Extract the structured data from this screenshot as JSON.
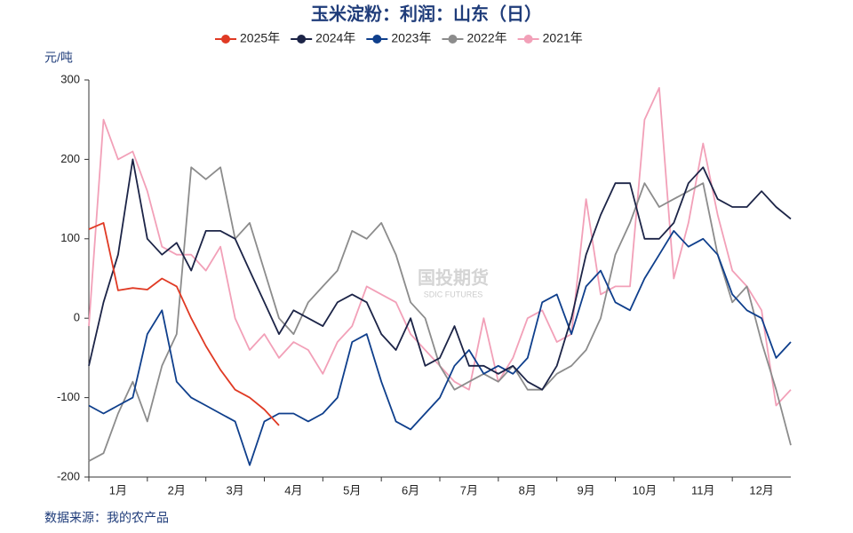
{
  "chart_data": {
    "type": "line",
    "title": "玉米淀粉：利润：山东（日）",
    "y_label": "元/吨",
    "source": "数据来源：我的农产品",
    "watermark": [
      "国投期货",
      "SDIC FUTURES"
    ],
    "x": [
      0,
      0.25,
      0.5,
      0.75,
      1,
      1.25,
      1.5,
      1.75,
      2,
      2.25,
      2.5,
      2.75,
      3,
      3.25,
      3.5,
      3.75,
      4,
      4.25,
      4.5,
      4.75,
      5,
      5.25,
      5.5,
      5.75,
      6,
      6.25,
      6.5,
      6.75,
      7,
      7.25,
      7.5,
      7.75,
      8,
      8.25,
      8.5,
      8.75,
      9,
      9.25,
      9.5,
      9.75,
      10,
      10.25,
      10.5,
      10.75,
      11,
      11.25,
      11.5,
      11.75,
      12
    ],
    "xlim": [
      0,
      12
    ],
    "xticks": [
      {
        "value": 0.5,
        "label": "1月"
      },
      {
        "value": 1.5,
        "label": "2月"
      },
      {
        "value": 2.5,
        "label": "3月"
      },
      {
        "value": 3.5,
        "label": "4月"
      },
      {
        "value": 4.5,
        "label": "5月"
      },
      {
        "value": 5.5,
        "label": "6月"
      },
      {
        "value": 6.5,
        "label": "7月"
      },
      {
        "value": 7.5,
        "label": "8月"
      },
      {
        "value": 8.5,
        "label": "9月"
      },
      {
        "value": 9.5,
        "label": "10月"
      },
      {
        "value": 10.5,
        "label": "11月"
      },
      {
        "value": 11.5,
        "label": "12月"
      }
    ],
    "ylim": [
      -200,
      300
    ],
    "yticks": [
      -200,
      -100,
      0,
      100,
      200,
      300
    ],
    "legend": "top",
    "series": [
      {
        "name": "2025年",
        "color": "#e03a24",
        "values": [
          112,
          120,
          35,
          38,
          36,
          50,
          40,
          0,
          -35,
          -65,
          -90,
          -100,
          -115,
          -135,
          null,
          null,
          null,
          null,
          null,
          null,
          null,
          null,
          null,
          null,
          null,
          null,
          null,
          null,
          null,
          null,
          null,
          null,
          null,
          null,
          null,
          null,
          null,
          null,
          null,
          null,
          null,
          null,
          null,
          null,
          null,
          null,
          null,
          null,
          null
        ]
      },
      {
        "name": "2024年",
        "color": "#1c2447",
        "values": [
          -60,
          20,
          80,
          200,
          100,
          80,
          95,
          60,
          110,
          110,
          100,
          60,
          20,
          -20,
          10,
          0,
          -10,
          20,
          30,
          20,
          -20,
          -40,
          0,
          -60,
          -50,
          -10,
          -60,
          -60,
          -70,
          -60,
          -80,
          -90,
          -60,
          0,
          80,
          130,
          170,
          170,
          100,
          100,
          120,
          170,
          190,
          150,
          140,
          140,
          160,
          140,
          125
        ]
      },
      {
        "name": "2023年",
        "color": "#0f3f8c",
        "values": [
          -110,
          -120,
          -110,
          -100,
          -20,
          10,
          -80,
          -100,
          -110,
          -120,
          -130,
          -185,
          -130,
          -120,
          -120,
          -130,
          -120,
          -100,
          -30,
          -20,
          -80,
          -130,
          -140,
          -120,
          -100,
          -60,
          -40,
          -70,
          -60,
          -70,
          -50,
          20,
          30,
          -20,
          40,
          60,
          20,
          10,
          50,
          80,
          110,
          90,
          100,
          80,
          30,
          10,
          0,
          -50,
          -30
        ]
      },
      {
        "name": "2022年",
        "color": "#8c8c8c",
        "values": [
          -180,
          -170,
          -120,
          -80,
          -130,
          -60,
          -20,
          190,
          175,
          190,
          100,
          120,
          60,
          0,
          -20,
          20,
          40,
          60,
          110,
          100,
          120,
          80,
          20,
          0,
          -60,
          -90,
          -80,
          -70,
          -80,
          -60,
          -90,
          -90,
          -70,
          -60,
          -40,
          0,
          80,
          120,
          170,
          140,
          150,
          160,
          170,
          80,
          20,
          40,
          -30,
          -90,
          -160
        ]
      },
      {
        "name": "2021年",
        "color": "#f2a0b8",
        "values": [
          -10,
          250,
          200,
          210,
          160,
          90,
          80,
          80,
          60,
          90,
          0,
          -40,
          -20,
          -50,
          -30,
          -40,
          -70,
          -30,
          -10,
          40,
          30,
          20,
          -20,
          -40,
          -60,
          -80,
          -90,
          0,
          -80,
          -50,
          0,
          10,
          -30,
          -20,
          150,
          30,
          40,
          40,
          250,
          290,
          50,
          120,
          220,
          130,
          60,
          40,
          10,
          -110,
          -90
        ]
      }
    ]
  }
}
